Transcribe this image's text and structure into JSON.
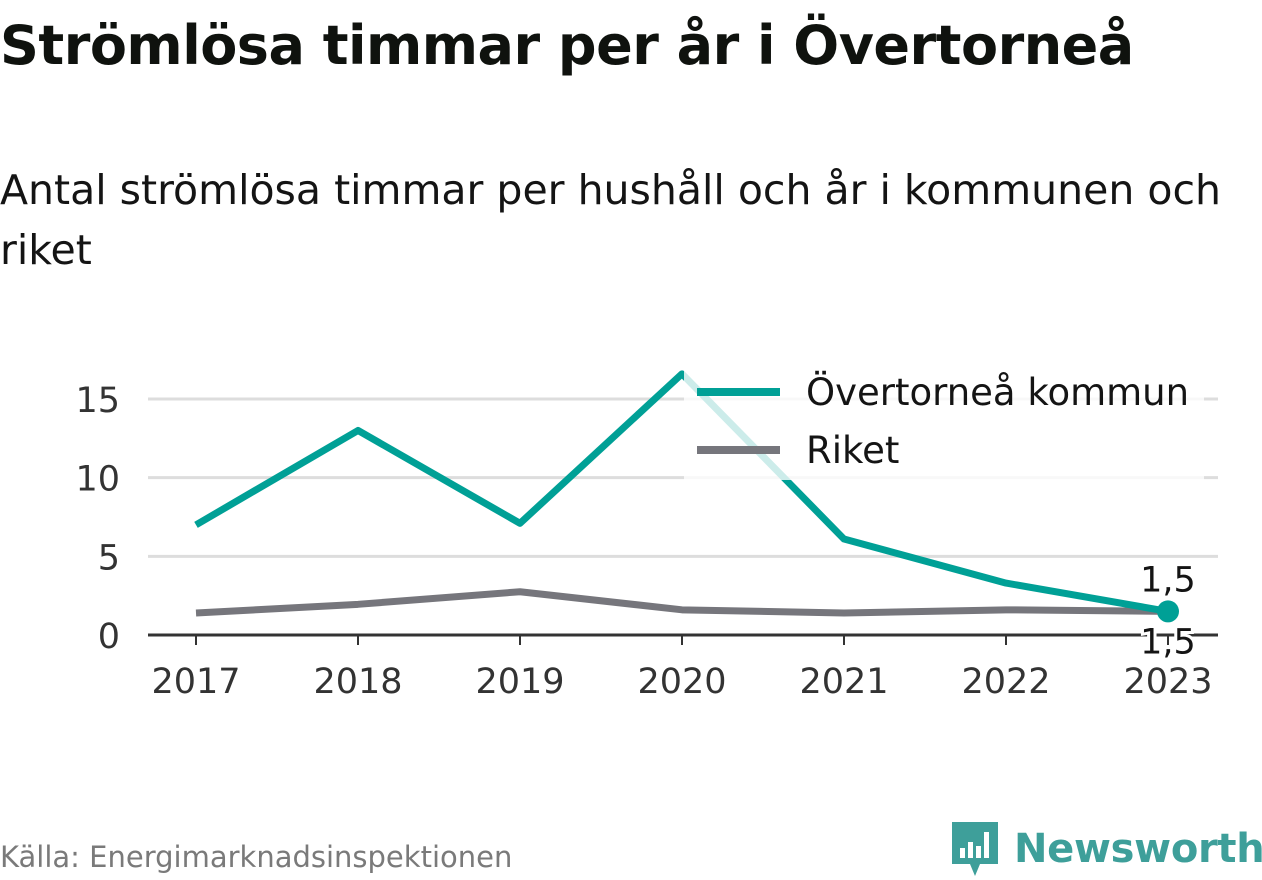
{
  "title": "Strömlösa timmar per år i Övertorneå",
  "subtitle": "Antal strömlösa timmar per hushåll och år i kommunen och riket",
  "source": "Källa: Energimarknadsinspektionen",
  "brand": {
    "name": "Newsworthy",
    "icon": "newsworthy-logo-icon",
    "color": "#3e9f9a"
  },
  "colors": {
    "kommun": "#00a096",
    "riket": "#76767c",
    "grid": "#dddddd",
    "axis": "#333333"
  },
  "chart_data": {
    "type": "line",
    "title": "Strömlösa timmar per år i Övertorneå",
    "subtitle": "Antal strömlösa timmar per hushåll och år i kommunen och riket",
    "x": [
      "2017",
      "2018",
      "2019",
      "2020",
      "2021",
      "2022",
      "2023"
    ],
    "ylim": [
      0,
      17
    ],
    "yticks": [
      0,
      5,
      10,
      15
    ],
    "ytick_labels": [
      "0",
      "5",
      "10",
      "15"
    ],
    "grid": true,
    "legend_position": "top-right",
    "series": [
      {
        "name": "Övertorneå kommun",
        "color": "#00a096",
        "values": [
          7.0,
          13.0,
          7.1,
          16.6,
          6.1,
          3.3,
          1.5
        ]
      },
      {
        "name": "Riket",
        "color": "#76767c",
        "values": [
          1.4,
          1.95,
          2.75,
          1.6,
          1.4,
          1.6,
          1.5
        ]
      }
    ],
    "annotations": [
      {
        "series": "Övertorneå kommun",
        "x": "2023",
        "label": "1,5"
      },
      {
        "series": "Riket",
        "x": "2023",
        "label": "1,5"
      }
    ]
  }
}
